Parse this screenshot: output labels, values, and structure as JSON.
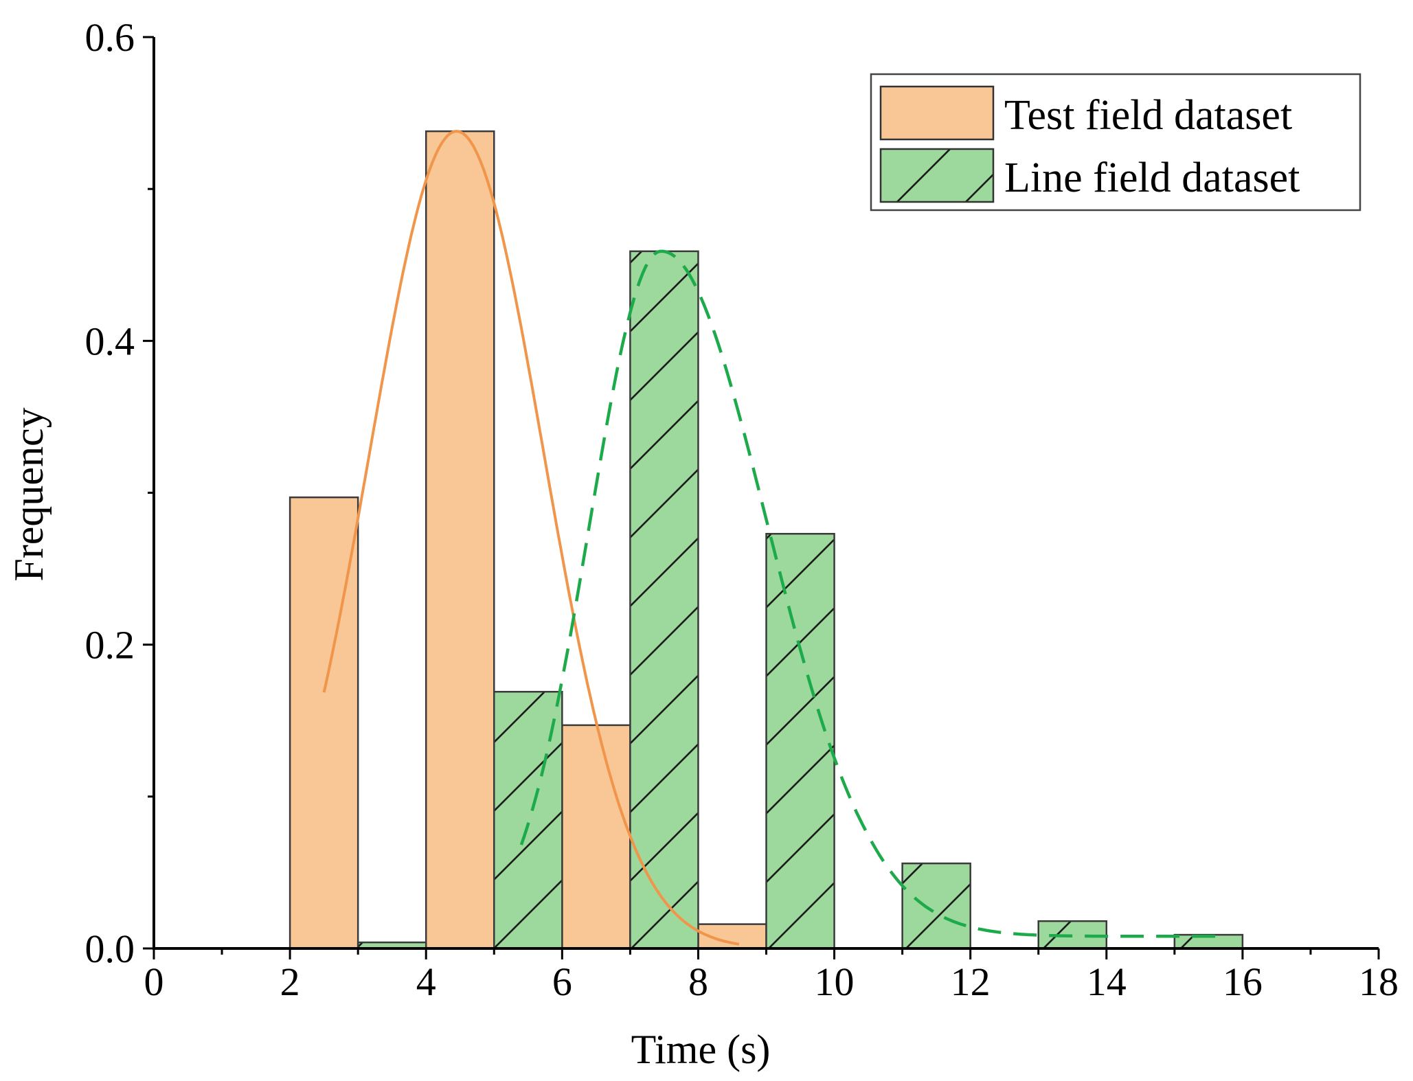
{
  "chart_data": {
    "type": "bar",
    "xlabel": "Time (s)",
    "ylabel": "Frequency",
    "xlim": [
      0,
      18
    ],
    "ylim": [
      0,
      0.6
    ],
    "xticks": [
      "0",
      "2",
      "4",
      "6",
      "8",
      "10",
      "12",
      "14",
      "16",
      "18"
    ],
    "yticks": [
      "0.0",
      "0.2",
      "0.4",
      "0.6"
    ],
    "series": [
      {
        "name": "Test field dataset",
        "color": "#F9C795",
        "pattern": "solid",
        "bins": [
          {
            "x0": 2,
            "x1": 3,
            "value": 0.297
          },
          {
            "x0": 4,
            "x1": 5,
            "value": 0.538
          },
          {
            "x0": 6,
            "x1": 7,
            "value": 0.147
          },
          {
            "x0": 8,
            "x1": 9,
            "value": 0.016
          }
        ],
        "fit": {
          "style": "solid",
          "color": "#F0954A",
          "mean": 4.45,
          "sd": 1.28,
          "peak": 0.538,
          "x_start": 2.5,
          "x_end": 8.6
        }
      },
      {
        "name": "Line field dataset",
        "color": "#9DD89D",
        "pattern": "hatched",
        "bins": [
          {
            "x0": 3,
            "x1": 4,
            "value": 0.004
          },
          {
            "x0": 5,
            "x1": 6,
            "value": 0.169
          },
          {
            "x0": 7,
            "x1": 8,
            "value": 0.459
          },
          {
            "x0": 9,
            "x1": 10,
            "value": 0.273
          },
          {
            "x0": 11,
            "x1": 12,
            "value": 0.056
          },
          {
            "x0": 13,
            "x1": 14,
            "value": 0.018
          },
          {
            "x0": 15,
            "x1": 16,
            "value": 0.009
          }
        ],
        "fit": {
          "style": "dashed",
          "color": "#1DAA4A",
          "mode": 7.45,
          "sd_left": 1.05,
          "sd_right": 1.55,
          "peak": 0.459,
          "x_start": 5.4,
          "x_end": 15.6
        }
      }
    ]
  }
}
